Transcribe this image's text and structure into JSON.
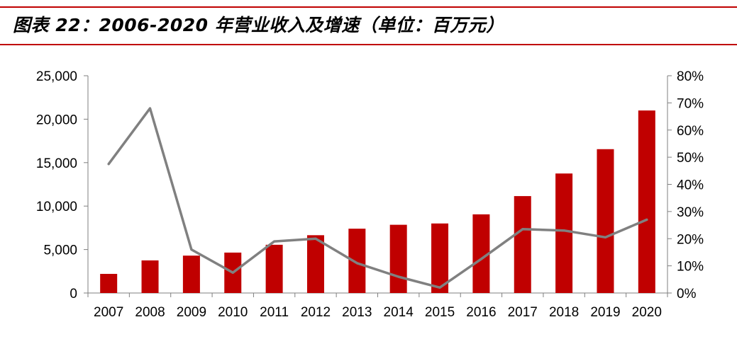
{
  "title": "图表 22：2006-2020 年营业收入及增速（单位：百万元）",
  "colors": {
    "rule": "#c00000",
    "bar": "#c00000",
    "line": "#808080",
    "axis": "#7f7f7f"
  },
  "chart_data": {
    "type": "bar",
    "categories": [
      "2007",
      "2008",
      "2009",
      "2010",
      "2011",
      "2012",
      "2013",
      "2014",
      "2015",
      "2016",
      "2017",
      "2018",
      "2019",
      "2020"
    ],
    "series": [
      {
        "type": "bar",
        "axis": "left",
        "values": [
          2200,
          3750,
          4300,
          4650,
          5550,
          6650,
          7400,
          7850,
          8000,
          9050,
          11150,
          13750,
          16550,
          21000
        ]
      },
      {
        "type": "line",
        "axis": "right",
        "values": [
          47.5,
          68,
          16,
          7.5,
          19,
          20,
          11,
          6,
          2,
          12.5,
          23.5,
          23,
          20.5,
          27
        ]
      }
    ],
    "left_axis": {
      "min": 0,
      "max": 25000,
      "ticks": [
        0,
        5000,
        10000,
        15000,
        20000,
        25000
      ],
      "tick_labels": [
        "0",
        "5,000",
        "10,000",
        "15,000",
        "20,000",
        "25,000"
      ]
    },
    "right_axis": {
      "min": 0,
      "max": 80,
      "ticks": [
        0,
        10,
        20,
        30,
        40,
        50,
        60,
        70,
        80
      ],
      "tick_labels": [
        "0%",
        "10%",
        "20%",
        "30%",
        "40%",
        "50%",
        "60%",
        "70%",
        "80%"
      ]
    },
    "grid": false,
    "legend": "none"
  }
}
